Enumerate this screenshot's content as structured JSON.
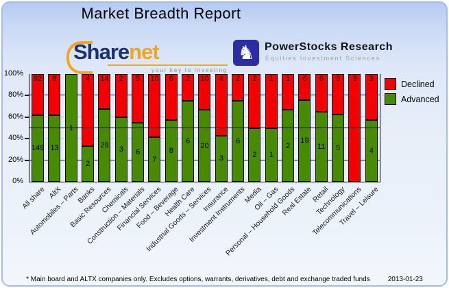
{
  "header": {
    "title": "Market Breadth Report"
  },
  "logos": {
    "sharenet": {
      "text_part1": "Share",
      "text_part2": "net",
      "tagline": "your key to investing",
      "navy_color": "#1e3173",
      "orange_color": "#f2a51f"
    },
    "powerstocks": {
      "name": "PowerStocks  Research",
      "tagline": "Equities Investment Sciences",
      "knight_icon": "chess-knight-icon",
      "square_color": "#2c2ca4"
    }
  },
  "chart_data": {
    "type": "bar",
    "stacked": true,
    "categories": [
      "All share",
      "AltX",
      "Automobiles – Parts",
      "Banks",
      "Basic Resources",
      "Chemicals",
      "Construction – Materials",
      "Financial Services",
      "Food – Beverage",
      "Health Care",
      "Industrial Goods – Services",
      "Insurance",
      "Investment Instruments",
      "Media",
      "Oil – Gas",
      "Personal – Household Goods",
      "Real Estate",
      "Retail",
      "Technology",
      "Telecommunications",
      "Travel – Leisure"
    ],
    "series": [
      {
        "name": "Declined",
        "color": "#f50000",
        "values": [
          92,
          8,
          0,
          4,
          14,
          2,
          5,
          10,
          6,
          2,
          10,
          4,
          2,
          2,
          1,
          1,
          6,
          6,
          3,
          3,
          3
        ]
      },
      {
        "name": "Advanced",
        "color": "#488a00",
        "values": [
          149,
          13,
          1,
          2,
          29,
          3,
          6,
          7,
          8,
          6,
          20,
          3,
          6,
          2,
          1,
          2,
          19,
          11,
          5,
          0,
          4
        ]
      }
    ],
    "value_display": "percent_of_total",
    "y_axis": {
      "unit": "%",
      "range": [
        0,
        100
      ],
      "ticks": [
        0,
        20,
        40,
        60,
        80,
        100
      ],
      "tick_labels": [
        "0%",
        "20%",
        "40%",
        "60%",
        "80%",
        "100%"
      ]
    },
    "gridlines": [
      {
        "pct": 20,
        "color": "#000080",
        "front": false
      },
      {
        "pct": 40,
        "color": "#c8c8c8",
        "front": false
      },
      {
        "pct": 50,
        "color": "#000000",
        "front": true
      },
      {
        "pct": 60,
        "color": "#c8c8c8",
        "front": false
      },
      {
        "pct": 80,
        "color": "#000080",
        "front": false
      }
    ],
    "legend": [
      {
        "label": "Declined",
        "color": "#f50000"
      },
      {
        "label": "Advanced",
        "color": "#488a00"
      }
    ],
    "legend_position": "top-right",
    "grid": true
  },
  "footer": {
    "note": "* Main board and ALTX companies only. Excludes options, warrants, derivatives, debt and exchange traded funds",
    "date": "2013-01-23"
  }
}
